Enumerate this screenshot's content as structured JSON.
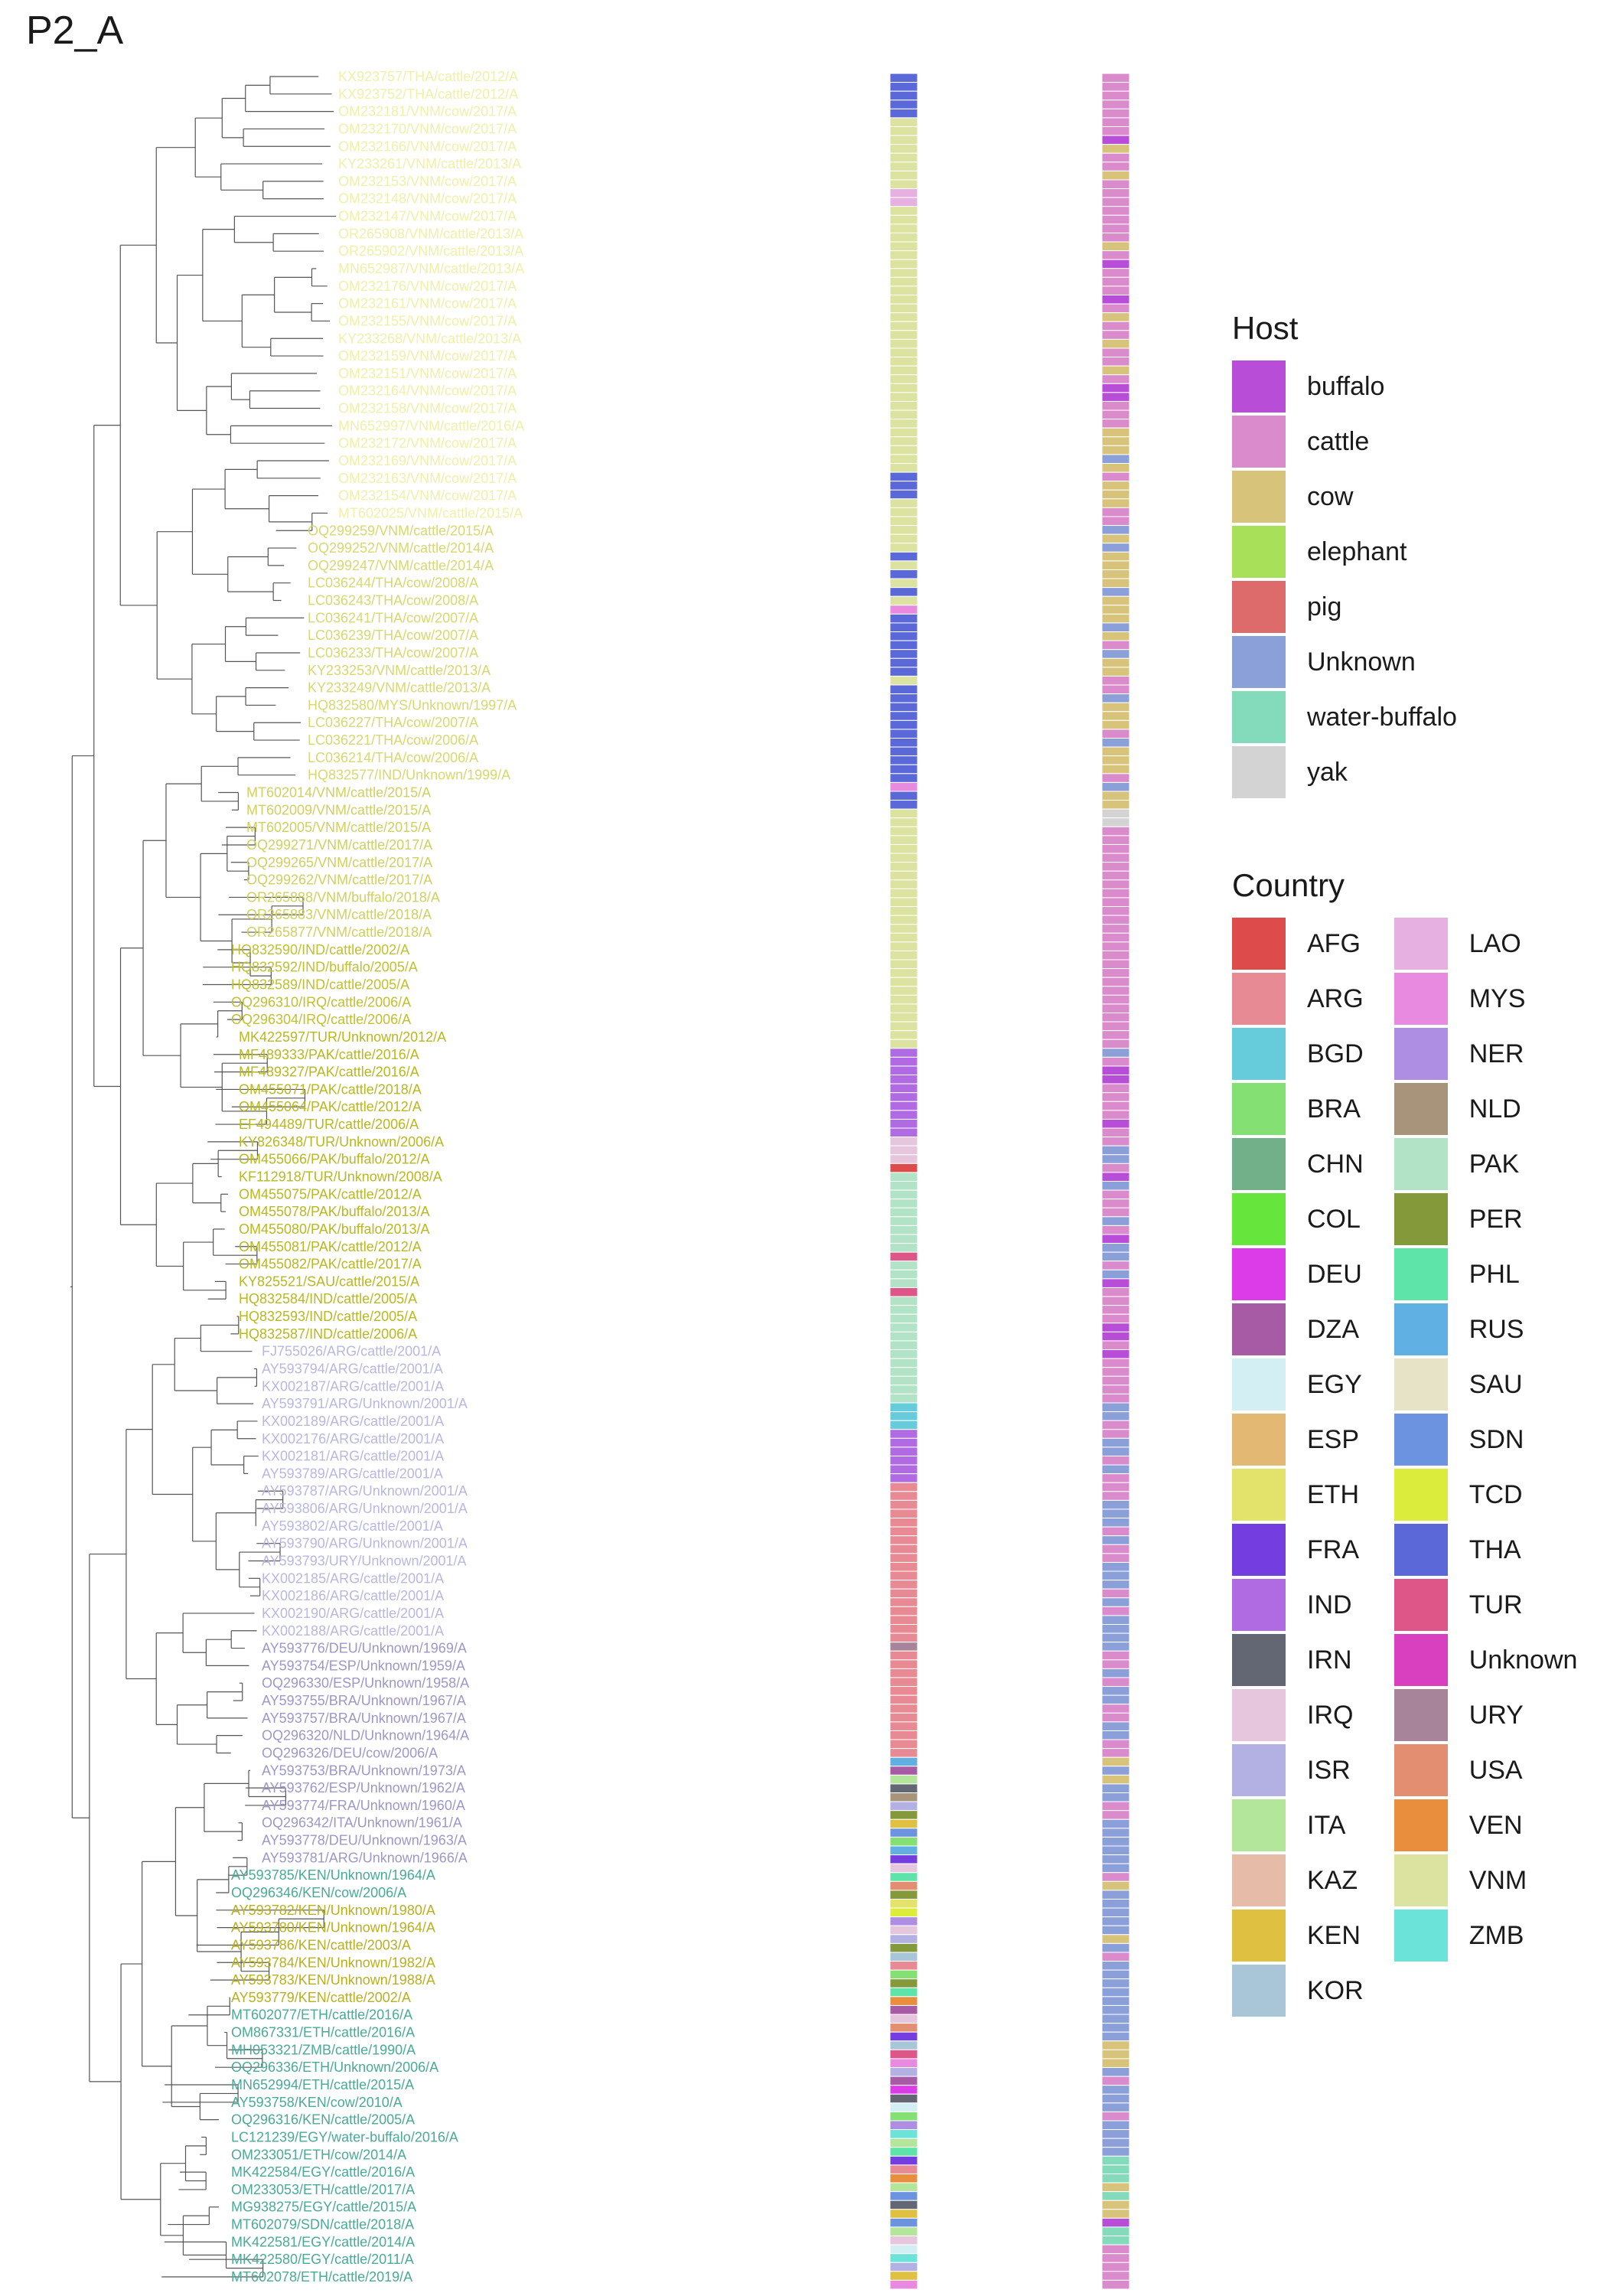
{
  "title": "P2_A",
  "tree": {
    "tips": [
      {
        "label": "KX923757/THA/cattle/2012/A",
        "group": "vnm"
      },
      {
        "label": "KX923752/THA/cattle/2012/A",
        "group": "vnm"
      },
      {
        "label": "OM232181/VNM/cow/2017/A",
        "group": "vnm"
      },
      {
        "label": "OM232170/VNM/cow/2017/A",
        "group": "vnm"
      },
      {
        "label": "OM232166/VNM/cow/2017/A",
        "group": "vnm"
      },
      {
        "label": "KY233261/VNM/cattle/2013/A",
        "group": "vnm"
      },
      {
        "label": "OM232153/VNM/cow/2017/A",
        "group": "vnm"
      },
      {
        "label": "OM232148/VNM/cow/2017/A",
        "group": "vnm"
      },
      {
        "label": "OM232147/VNM/cow/2017/A",
        "group": "vnm"
      },
      {
        "label": "OR265908/VNM/cattle/2013/A",
        "group": "vnm"
      },
      {
        "label": "OR265902/VNM/cattle/2013/A",
        "group": "vnm"
      },
      {
        "label": "MN652987/VNM/cattle/2013/A",
        "group": "vnm"
      },
      {
        "label": "OM232176/VNM/cow/2017/A",
        "group": "vnm"
      },
      {
        "label": "OM232161/VNM/cow/2017/A",
        "group": "vnm"
      },
      {
        "label": "OM232155/VNM/cow/2017/A",
        "group": "vnm"
      },
      {
        "label": "KY233268/VNM/cattle/2013/A",
        "group": "vnm"
      },
      {
        "label": "OM232159/VNM/cow/2017/A",
        "group": "vnm"
      },
      {
        "label": "OM232151/VNM/cow/2017/A",
        "group": "vnm"
      },
      {
        "label": "OM232164/VNM/cow/2017/A",
        "group": "vnm"
      },
      {
        "label": "OM232158/VNM/cow/2017/A",
        "group": "vnm"
      },
      {
        "label": "MN652997/VNM/cattle/2016/A",
        "group": "vnm"
      },
      {
        "label": "OM232172/VNM/cow/2017/A",
        "group": "vnm"
      },
      {
        "label": "OM232169/VNM/cow/2017/A",
        "group": "vnm"
      },
      {
        "label": "OM232163/VNM/cow/2017/A",
        "group": "vnm"
      },
      {
        "label": "OM232154/VNM/cow/2017/A",
        "group": "vnm"
      },
      {
        "label": "MT602025/VNM/cattle/2015/A",
        "group": "vnm"
      },
      {
        "label": "OQ299259/VNM/cattle/2015/A",
        "group": "tha"
      },
      {
        "label": "OQ299252/VNM/cattle/2014/A",
        "group": "tha"
      },
      {
        "label": "OQ299247/VNM/cattle/2014/A",
        "group": "tha"
      },
      {
        "label": "LC036244/THA/cow/2008/A",
        "group": "tha"
      },
      {
        "label": "LC036243/THA/cow/2008/A",
        "group": "tha"
      },
      {
        "label": "LC036241/THA/cow/2007/A",
        "group": "tha"
      },
      {
        "label": "LC036239/THA/cow/2007/A",
        "group": "tha"
      },
      {
        "label": "LC036233/THA/cow/2007/A",
        "group": "tha"
      },
      {
        "label": "KY233253/VNM/cattle/2013/A",
        "group": "tha"
      },
      {
        "label": "KY233249/VNM/cattle/2013/A",
        "group": "tha"
      },
      {
        "label": "HQ832580/MYS/Unknown/1997/A",
        "group": "tha"
      },
      {
        "label": "LC036227/THA/cow/2007/A",
        "group": "tha"
      },
      {
        "label": "LC036221/THA/cow/2006/A",
        "group": "tha"
      },
      {
        "label": "LC036214/THA/cow/2006/A",
        "group": "tha"
      },
      {
        "label": "HQ832577/IND/Unknown/1999/A",
        "group": "tha"
      },
      {
        "label": "MT602014/VNM/cattle/2015/A",
        "group": "vnm2"
      },
      {
        "label": "MT602009/VNM/cattle/2015/A",
        "group": "vnm2"
      },
      {
        "label": "MT602005/VNM/cattle/2015/A",
        "group": "vnm2"
      },
      {
        "label": "OQ299271/VNM/cattle/2017/A",
        "group": "vnm2"
      },
      {
        "label": "OQ299265/VNM/cattle/2017/A",
        "group": "vnm2"
      },
      {
        "label": "OQ299262/VNM/cattle/2017/A",
        "group": "vnm2"
      },
      {
        "label": "OR265888/VNM/buffalo/2018/A",
        "group": "vnm2"
      },
      {
        "label": "OR265883/VNM/cattle/2018/A",
        "group": "vnm2"
      },
      {
        "label": "OR265877/VNM/cattle/2018/A",
        "group": "vnm2"
      },
      {
        "label": "HQ832590/IND/cattle/2002/A",
        "group": "ind"
      },
      {
        "label": "HQ832592/IND/buffalo/2005/A",
        "group": "ind"
      },
      {
        "label": "HQ832589/IND/cattle/2005/A",
        "group": "ind"
      },
      {
        "label": "OQ296310/IRQ/cattle/2006/A",
        "group": "ind"
      },
      {
        "label": "OQ296304/IRQ/cattle/2006/A",
        "group": "ind"
      },
      {
        "label": "MK422597/TUR/Unknown/2012/A",
        "group": "pak"
      },
      {
        "label": "MF489333/PAK/cattle/2016/A",
        "group": "pak"
      },
      {
        "label": "MF489327/PAK/cattle/2016/A",
        "group": "pak"
      },
      {
        "label": "OM455071/PAK/cattle/2018/A",
        "group": "pak"
      },
      {
        "label": "OM455064/PAK/cattle/2012/A",
        "group": "pak"
      },
      {
        "label": "EF494489/TUR/cattle/2006/A",
        "group": "pak"
      },
      {
        "label": "KY826348/TUR/Unknown/2006/A",
        "group": "pak"
      },
      {
        "label": "OM455066/PAK/buffalo/2012/A",
        "group": "pak"
      },
      {
        "label": "KF112918/TUR/Unknown/2008/A",
        "group": "pak"
      },
      {
        "label": "OM455075/PAK/cattle/2012/A",
        "group": "pak"
      },
      {
        "label": "OM455078/PAK/buffalo/2013/A",
        "group": "pak"
      },
      {
        "label": "OM455080/PAK/buffalo/2013/A",
        "group": "pak"
      },
      {
        "label": "OM455081/PAK/cattle/2012/A",
        "group": "pak"
      },
      {
        "label": "OM455082/PAK/cattle/2017/A",
        "group": "pak"
      },
      {
        "label": "KY825521/SAU/cattle/2015/A",
        "group": "pak"
      },
      {
        "label": "HQ832584/IND/cattle/2005/A",
        "group": "pak"
      },
      {
        "label": "HQ832593/IND/cattle/2005/A",
        "group": "pak"
      },
      {
        "label": "HQ832587/IND/cattle/2006/A",
        "group": "pak"
      },
      {
        "label": "FJ755026/ARG/cattle/2001/A",
        "group": "arg"
      },
      {
        "label": "AY593794/ARG/cattle/2001/A",
        "group": "arg"
      },
      {
        "label": "KX002187/ARG/cattle/2001/A",
        "group": "arg"
      },
      {
        "label": "AY593791/ARG/Unknown/2001/A",
        "group": "arg"
      },
      {
        "label": "KX002189/ARG/cattle/2001/A",
        "group": "arg"
      },
      {
        "label": "KX002176/ARG/cattle/2001/A",
        "group": "arg"
      },
      {
        "label": "KX002181/ARG/cattle/2001/A",
        "group": "arg"
      },
      {
        "label": "AY593789/ARG/cattle/2001/A",
        "group": "arg"
      },
      {
        "label": "AY593787/ARG/Unknown/2001/A",
        "group": "arg"
      },
      {
        "label": "AY593806/ARG/Unknown/2001/A",
        "group": "arg"
      },
      {
        "label": "AY593802/ARG/cattle/2001/A",
        "group": "arg"
      },
      {
        "label": "AY593790/ARG/Unknown/2001/A",
        "group": "arg"
      },
      {
        "label": "AY593793/URY/Unknown/2001/A",
        "group": "arg"
      },
      {
        "label": "KX002185/ARG/cattle/2001/A",
        "group": "arg"
      },
      {
        "label": "KX002186/ARG/cattle/2001/A",
        "group": "arg"
      },
      {
        "label": "KX002190/ARG/cattle/2001/A",
        "group": "arg"
      },
      {
        "label": "KX002188/ARG/cattle/2001/A",
        "group": "arg"
      },
      {
        "label": "AY593776/DEU/Unknown/1969/A",
        "group": "eur"
      },
      {
        "label": "AY593754/ESP/Unknown/1959/A",
        "group": "eur"
      },
      {
        "label": "OQ296330/ESP/Unknown/1958/A",
        "group": "eur"
      },
      {
        "label": "AY593755/BRA/Unknown/1967/A",
        "group": "eur"
      },
      {
        "label": "AY593757/BRA/Unknown/1967/A",
        "group": "eur"
      },
      {
        "label": "OQ296320/NLD/Unknown/1964/A",
        "group": "eur"
      },
      {
        "label": "OQ296326/DEU/cow/2006/A",
        "group": "eur"
      },
      {
        "label": "AY593753/BRA/Unknown/1973/A",
        "group": "eur"
      },
      {
        "label": "AY593762/ESP/Unknown/1962/A",
        "group": "eur"
      },
      {
        "label": "AY593774/FRA/Unknown/1960/A",
        "group": "eur"
      },
      {
        "label": "OQ296342/ITA/Unknown/1961/A",
        "group": "eur"
      },
      {
        "label": "AY593778/DEU/Unknown/1963/A",
        "group": "eur"
      },
      {
        "label": "AY593781/ARG/Unknown/1966/A",
        "group": "eur"
      },
      {
        "label": "AY593785/KEN/Unknown/1964/A",
        "group": "eaf"
      },
      {
        "label": "OQ296346/KEN/cow/2006/A",
        "group": "eaf"
      },
      {
        "label": "AY593782/KEN/Unknown/1980/A",
        "group": "ken"
      },
      {
        "label": "AY593780/KEN/Unknown/1964/A",
        "group": "ken"
      },
      {
        "label": "AY593786/KEN/cattle/2003/A",
        "group": "ken"
      },
      {
        "label": "AY593784/KEN/Unknown/1982/A",
        "group": "ken"
      },
      {
        "label": "AY593783/KEN/Unknown/1988/A",
        "group": "ken"
      },
      {
        "label": "AY593779/KEN/cattle/2002/A",
        "group": "ken"
      },
      {
        "label": "MT602077/ETH/cattle/2016/A",
        "group": "eaf"
      },
      {
        "label": "OM867331/ETH/cattle/2016/A",
        "group": "eaf"
      },
      {
        "label": "MH053321/ZMB/cattle/1990/A",
        "group": "eaf"
      },
      {
        "label": "OQ296336/ETH/Unknown/2006/A",
        "group": "eaf"
      },
      {
        "label": "MN652994/ETH/cattle/2015/A",
        "group": "eaf"
      },
      {
        "label": "AY593758/KEN/cow/2010/A",
        "group": "eaf"
      },
      {
        "label": "OQ296316/KEN/cattle/2005/A",
        "group": "eaf"
      },
      {
        "label": "LC121239/EGY/water-buffalo/2016/A",
        "group": "eaf"
      },
      {
        "label": "OM233051/ETH/cow/2014/A",
        "group": "eaf"
      },
      {
        "label": "MK422584/EGY/cattle/2016/A",
        "group": "eaf"
      },
      {
        "label": "OM233053/ETH/cattle/2017/A",
        "group": "eaf"
      },
      {
        "label": "MG938275/EGY/cattle/2015/A",
        "group": "eaf"
      },
      {
        "label": "MT602079/SDN/cattle/2018/A",
        "group": "eaf"
      },
      {
        "label": "MK422581/EGY/cattle/2014/A",
        "group": "eaf"
      },
      {
        "label": "MK422580/EGY/cattle/2011/A",
        "group": "eaf"
      },
      {
        "label": "MT602078/ETH/cattle/2019/A",
        "group": "eaf"
      }
    ]
  },
  "legend_host": {
    "title": "Host",
    "items": [
      {
        "label": "buffalo",
        "color": "#b84dd8"
      },
      {
        "label": "cattle",
        "color": "#d98bcb"
      },
      {
        "label": "cow",
        "color": "#d8c37a"
      },
      {
        "label": "elephant",
        "color": "#a8e05a"
      },
      {
        "label": "pig",
        "color": "#de6b6b"
      },
      {
        "label": "Unknown",
        "color": "#8b9fd8"
      },
      {
        "label": "water-buffalo",
        "color": "#84dbbb"
      },
      {
        "label": "yak",
        "color": "#d3d3d3"
      }
    ]
  },
  "legend_country": {
    "title": "Country",
    "items": [
      {
        "label": "AFG",
        "color": "#de4b4b"
      },
      {
        "label": "ARG",
        "color": "#e88a93"
      },
      {
        "label": "BGD",
        "color": "#66ccdc"
      },
      {
        "label": "BRA",
        "color": "#84e072"
      },
      {
        "label": "CHN",
        "color": "#72b08a"
      },
      {
        "label": "COL",
        "color": "#66e63c"
      },
      {
        "label": "DEU",
        "color": "#dc3ce8"
      },
      {
        "label": "DZA",
        "color": "#a85ba5"
      },
      {
        "label": "EGY",
        "color": "#d3eff3"
      },
      {
        "label": "ESP",
        "color": "#e3b872"
      },
      {
        "label": "ETH",
        "color": "#e3e36b"
      },
      {
        "label": "FRA",
        "color": "#733de0"
      },
      {
        "label": "IND",
        "color": "#b06be3"
      },
      {
        "label": "IRN",
        "color": "#626773"
      },
      {
        "label": "IRQ",
        "color": "#e6c6dc"
      },
      {
        "label": "ISR",
        "color": "#b3b0e3"
      },
      {
        "label": "ITA",
        "color": "#b3e69b"
      },
      {
        "label": "KAZ",
        "color": "#e6bba8"
      },
      {
        "label": "KEN",
        "color": "#e0c040"
      },
      {
        "label": "KOR",
        "color": "#a8c6d8"
      },
      {
        "label": "LAO",
        "color": "#e6b0e0"
      },
      {
        "label": "MYS",
        "color": "#e88ae0"
      },
      {
        "label": "NER",
        "color": "#ad8ee3"
      },
      {
        "label": "NLD",
        "color": "#a8947a"
      },
      {
        "label": "PAK",
        "color": "#b3e3c6"
      },
      {
        "label": "PER",
        "color": "#84993a"
      },
      {
        "label": "PHL",
        "color": "#5ee3a8"
      },
      {
        "label": "RUS",
        "color": "#60b0e3"
      },
      {
        "label": "SAU",
        "color": "#e6e3c6"
      },
      {
        "label": "SDN",
        "color": "#6b93e0"
      },
      {
        "label": "TCD",
        "color": "#dcec3c"
      },
      {
        "label": "THA",
        "color": "#5b68d8"
      },
      {
        "label": "TUR",
        "color": "#de5588"
      },
      {
        "label": "Unknown",
        "color": "#d840c0"
      },
      {
        "label": "URY",
        "color": "#a8849b"
      },
      {
        "label": "USA",
        "color": "#e38e70"
      },
      {
        "label": "VEN",
        "color": "#e88e3c"
      },
      {
        "label": "VNM",
        "color": "#dce3a0"
      },
      {
        "label": "ZMB",
        "color": "#6be3d8"
      }
    ]
  },
  "colors": {
    "tree_line": "#555555",
    "label_vnm": "#f0f0a8",
    "label_tha": "#d8d870",
    "label_vnm2": "#d0d060",
    "label_ind": "#c0c030",
    "label_pak": "#b8b820",
    "label_arg": "#b8b8e0",
    "label_eur": "#9c98c8",
    "label_ken": "#b8b020",
    "label_eaf": "#4aaa98"
  }
}
